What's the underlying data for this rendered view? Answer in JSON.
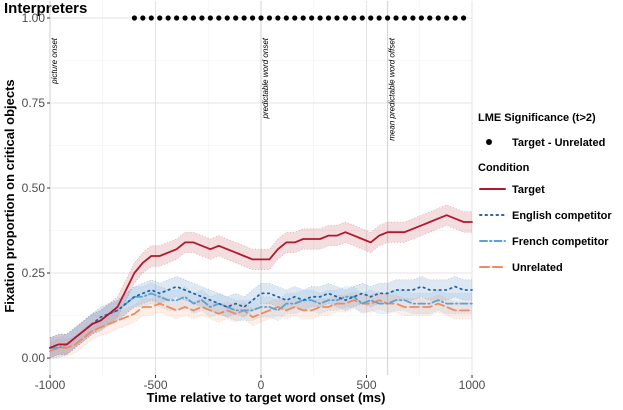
{
  "chart_data": {
    "type": "line",
    "title": "Interpreters",
    "xlabel": "Time relative to target word onset (ms)",
    "ylabel": "Fixation proportion on critical objects",
    "xlim": [
      -1000,
      1000
    ],
    "ylim": [
      -0.05,
      1.05
    ],
    "x_ticks": [
      -1000,
      -500,
      0,
      500,
      1000
    ],
    "x_tick_labels": [
      "-1000",
      "-500",
      "0",
      "500",
      "1000"
    ],
    "y_ticks": [
      0,
      0.25,
      0.5,
      0.75,
      1.0
    ],
    "y_tick_labels": [
      "0.00",
      "0.25",
      "0.50",
      "0.75",
      "1.00"
    ],
    "grid": true,
    "legend_position": "right",
    "annotations": [
      {
        "x": -1000,
        "text": "picture onset"
      },
      {
        "x": 0,
        "text": "predictable word onset"
      },
      {
        "x": 600,
        "text": "mean predictable word offset"
      }
    ],
    "significance_legend_title": "LME Significance (t>2)",
    "significance_label": "Target - Unrelated",
    "significance_y": 1.0,
    "significance_x": [
      -600,
      -560,
      -520,
      -480,
      -440,
      -400,
      -360,
      -320,
      -280,
      -240,
      -200,
      -160,
      -120,
      -80,
      -40,
      0,
      40,
      80,
      120,
      160,
      200,
      240,
      280,
      320,
      360,
      400,
      440,
      480,
      520,
      560,
      600,
      640,
      680,
      720,
      760,
      800,
      840,
      880,
      920,
      960
    ],
    "condition_legend_title": "Condition",
    "x": [
      -1000,
      -960,
      -920,
      -880,
      -840,
      -800,
      -760,
      -720,
      -680,
      -640,
      -600,
      -560,
      -520,
      -480,
      -440,
      -400,
      -360,
      -320,
      -280,
      -240,
      -200,
      -160,
      -120,
      -80,
      -40,
      0,
      40,
      80,
      120,
      160,
      200,
      240,
      280,
      320,
      360,
      400,
      440,
      480,
      520,
      560,
      600,
      640,
      680,
      720,
      760,
      800,
      840,
      880,
      920,
      960,
      1000
    ],
    "series": [
      {
        "name": "Target",
        "color": "#b2182b",
        "dash": "solid",
        "band": 0.03,
        "values": [
          0.03,
          0.04,
          0.04,
          0.06,
          0.08,
          0.1,
          0.11,
          0.13,
          0.15,
          0.2,
          0.25,
          0.28,
          0.3,
          0.3,
          0.31,
          0.32,
          0.34,
          0.34,
          0.33,
          0.32,
          0.33,
          0.32,
          0.31,
          0.3,
          0.29,
          0.29,
          0.29,
          0.32,
          0.34,
          0.34,
          0.35,
          0.35,
          0.35,
          0.36,
          0.36,
          0.37,
          0.36,
          0.35,
          0.34,
          0.36,
          0.37,
          0.37,
          0.37,
          0.38,
          0.39,
          0.4,
          0.41,
          0.42,
          0.41,
          0.4,
          0.4
        ]
      },
      {
        "name": "English competitor",
        "color": "#2166ac",
        "dash": "dotted",
        "band": 0.03,
        "values": [
          0.03,
          0.04,
          0.04,
          0.06,
          0.08,
          0.1,
          0.12,
          0.13,
          0.14,
          0.16,
          0.18,
          0.19,
          0.2,
          0.19,
          0.2,
          0.21,
          0.2,
          0.19,
          0.18,
          0.17,
          0.16,
          0.15,
          0.16,
          0.15,
          0.17,
          0.19,
          0.19,
          0.18,
          0.17,
          0.18,
          0.17,
          0.18,
          0.18,
          0.19,
          0.18,
          0.17,
          0.18,
          0.19,
          0.18,
          0.19,
          0.19,
          0.2,
          0.2,
          0.2,
          0.21,
          0.2,
          0.2,
          0.2,
          0.21,
          0.2,
          0.2
        ]
      },
      {
        "name": "French competitor",
        "color": "#5ba3d4",
        "dash": "dotdash",
        "band": 0.03,
        "values": [
          0.03,
          0.03,
          0.04,
          0.06,
          0.08,
          0.1,
          0.11,
          0.13,
          0.14,
          0.16,
          0.18,
          0.18,
          0.19,
          0.18,
          0.17,
          0.17,
          0.18,
          0.16,
          0.17,
          0.15,
          0.16,
          0.15,
          0.14,
          0.14,
          0.14,
          0.15,
          0.15,
          0.14,
          0.16,
          0.16,
          0.17,
          0.17,
          0.16,
          0.17,
          0.17,
          0.18,
          0.18,
          0.16,
          0.17,
          0.16,
          0.16,
          0.17,
          0.17,
          0.16,
          0.16,
          0.16,
          0.17,
          0.16,
          0.16,
          0.16,
          0.16
        ]
      },
      {
        "name": "Unrelated",
        "color": "#ef8a62",
        "dash": "longdash",
        "band": 0.025,
        "values": [
          0.02,
          0.03,
          0.03,
          0.04,
          0.06,
          0.08,
          0.09,
          0.1,
          0.11,
          0.12,
          0.13,
          0.15,
          0.15,
          0.16,
          0.15,
          0.14,
          0.15,
          0.14,
          0.15,
          0.14,
          0.13,
          0.14,
          0.13,
          0.14,
          0.12,
          0.13,
          0.14,
          0.15,
          0.14,
          0.15,
          0.14,
          0.14,
          0.15,
          0.15,
          0.16,
          0.16,
          0.17,
          0.16,
          0.16,
          0.17,
          0.16,
          0.16,
          0.15,
          0.15,
          0.15,
          0.15,
          0.16,
          0.15,
          0.14,
          0.14,
          0.14
        ]
      }
    ]
  }
}
